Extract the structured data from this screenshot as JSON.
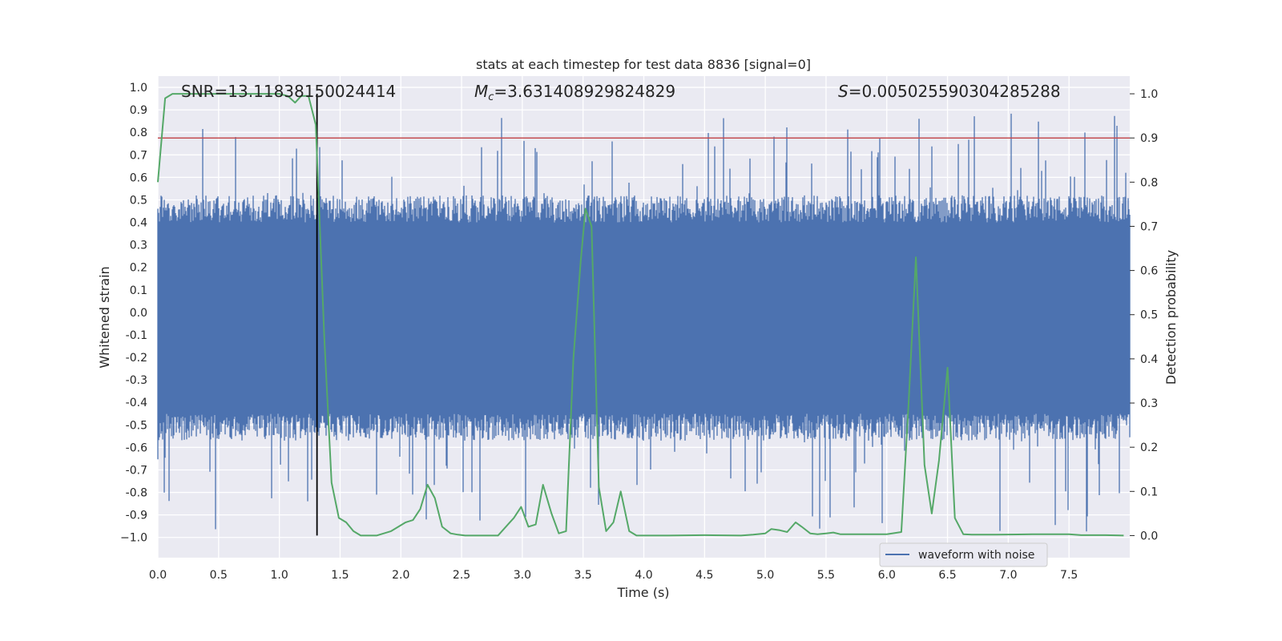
{
  "chart_data": {
    "type": "line",
    "title": "stats at each timestep for test data 8836 [signal=0]",
    "xlabel": "Time (s)",
    "ylabel_left": "Whitened strain",
    "ylabel_right": "Detection probability",
    "xlim": [
      0.0,
      8.0
    ],
    "ylim_left": [
      -1.09,
      1.05
    ],
    "ylim_right": [
      -0.05,
      1.04
    ],
    "x_ticks": [
      "0.0",
      "0.5",
      "1.0",
      "1.5",
      "2.0",
      "2.5",
      "3.0",
      "3.5",
      "4.0",
      "4.5",
      "5.0",
      "5.5",
      "6.0",
      "6.5",
      "7.0",
      "7.5"
    ],
    "y_left_ticks": [
      "1.0",
      "0.9",
      "0.8",
      "0.7",
      "0.6",
      "0.5",
      "0.4",
      "0.3",
      "0.2",
      "0.1",
      "0.0",
      "-0.1",
      "-0.2",
      "-0.3",
      "-0.4",
      "-0.5",
      "-0.6",
      "-0.7",
      "-0.8",
      "-0.9",
      "−1.0"
    ],
    "y_right_ticks": [
      "0.0",
      "0.1",
      "0.2",
      "0.3",
      "0.4",
      "0.5",
      "0.6",
      "0.7",
      "0.8",
      "0.9",
      "1.0"
    ],
    "grid": true,
    "legend": {
      "placement": "lower-right",
      "entries": [
        "waveform with noise"
      ]
    },
    "annotations": {
      "snr_text": "SNR=13.11838150024414",
      "mc_symbol": "M",
      "mc_subscript": "c",
      "mc_value": "=3.631408929824829",
      "s_symbol": "S",
      "s_value": "=0.005025590304285288"
    },
    "threshold_probability": 0.9,
    "marker_time": 1.31,
    "colors": {
      "waveform": "#4c72b0",
      "probability": "#55a868",
      "threshold": "#c44e52",
      "marker": "#000000",
      "plot_bg": "#eaeaf2"
    },
    "series": [
      {
        "name": "waveform with noise",
        "axis": "left",
        "envelope": {
          "core_band": [
            -0.45,
            0.4
          ],
          "spike_max_top": 0.9,
          "spike_min_bottom": -0.98
        }
      },
      {
        "axis": "right",
        "x": [
          0.0,
          0.06,
          0.12,
          0.2,
          0.3,
          0.5,
          0.7,
          0.9,
          1.0,
          1.07,
          1.13,
          1.18,
          1.24,
          1.3,
          1.37,
          1.43,
          1.49,
          1.55,
          1.61,
          1.67,
          1.8,
          1.92,
          1.98,
          2.04,
          2.1,
          2.16,
          2.22,
          2.28,
          2.34,
          2.41,
          2.47,
          2.53,
          2.6,
          2.8,
          2.93,
          2.99,
          3.05,
          3.11,
          3.17,
          3.24,
          3.3,
          3.36,
          3.42,
          3.48,
          3.52,
          3.57,
          3.63,
          3.69,
          3.75,
          3.81,
          3.88,
          3.94,
          4.0,
          4.2,
          4.5,
          4.8,
          4.9,
          5.0,
          5.05,
          5.12,
          5.18,
          5.25,
          5.3,
          5.37,
          5.43,
          5.5,
          5.56,
          5.62,
          5.8,
          6.0,
          6.12,
          6.18,
          6.24,
          6.31,
          6.37,
          6.43,
          6.5,
          6.56,
          6.63,
          6.7,
          6.9,
          7.2,
          7.4,
          7.5,
          7.6,
          7.8,
          7.95
        ],
        "values": [
          0.8,
          0.99,
          1.0,
          1.0,
          1.0,
          1.0,
          1.0,
          1.0,
          1.0,
          0.995,
          0.98,
          0.995,
          0.995,
          0.93,
          0.45,
          0.12,
          0.04,
          0.03,
          0.01,
          0.0,
          0.0,
          0.01,
          0.02,
          0.03,
          0.035,
          0.06,
          0.115,
          0.085,
          0.02,
          0.005,
          0.002,
          0.0,
          0.0,
          0.0,
          0.04,
          0.065,
          0.02,
          0.025,
          0.115,
          0.05,
          0.005,
          0.01,
          0.4,
          0.62,
          0.74,
          0.7,
          0.11,
          0.01,
          0.03,
          0.1,
          0.01,
          0.0,
          0.0,
          0.0,
          0.001,
          0.0,
          0.002,
          0.005,
          0.015,
          0.012,
          0.008,
          0.03,
          0.02,
          0.005,
          0.003,
          0.005,
          0.007,
          0.003,
          0.003,
          0.003,
          0.008,
          0.3,
          0.63,
          0.16,
          0.05,
          0.17,
          0.38,
          0.04,
          0.003,
          0.002,
          0.002,
          0.003,
          0.003,
          0.003,
          0.001,
          0.001,
          0.0
        ]
      }
    ]
  }
}
